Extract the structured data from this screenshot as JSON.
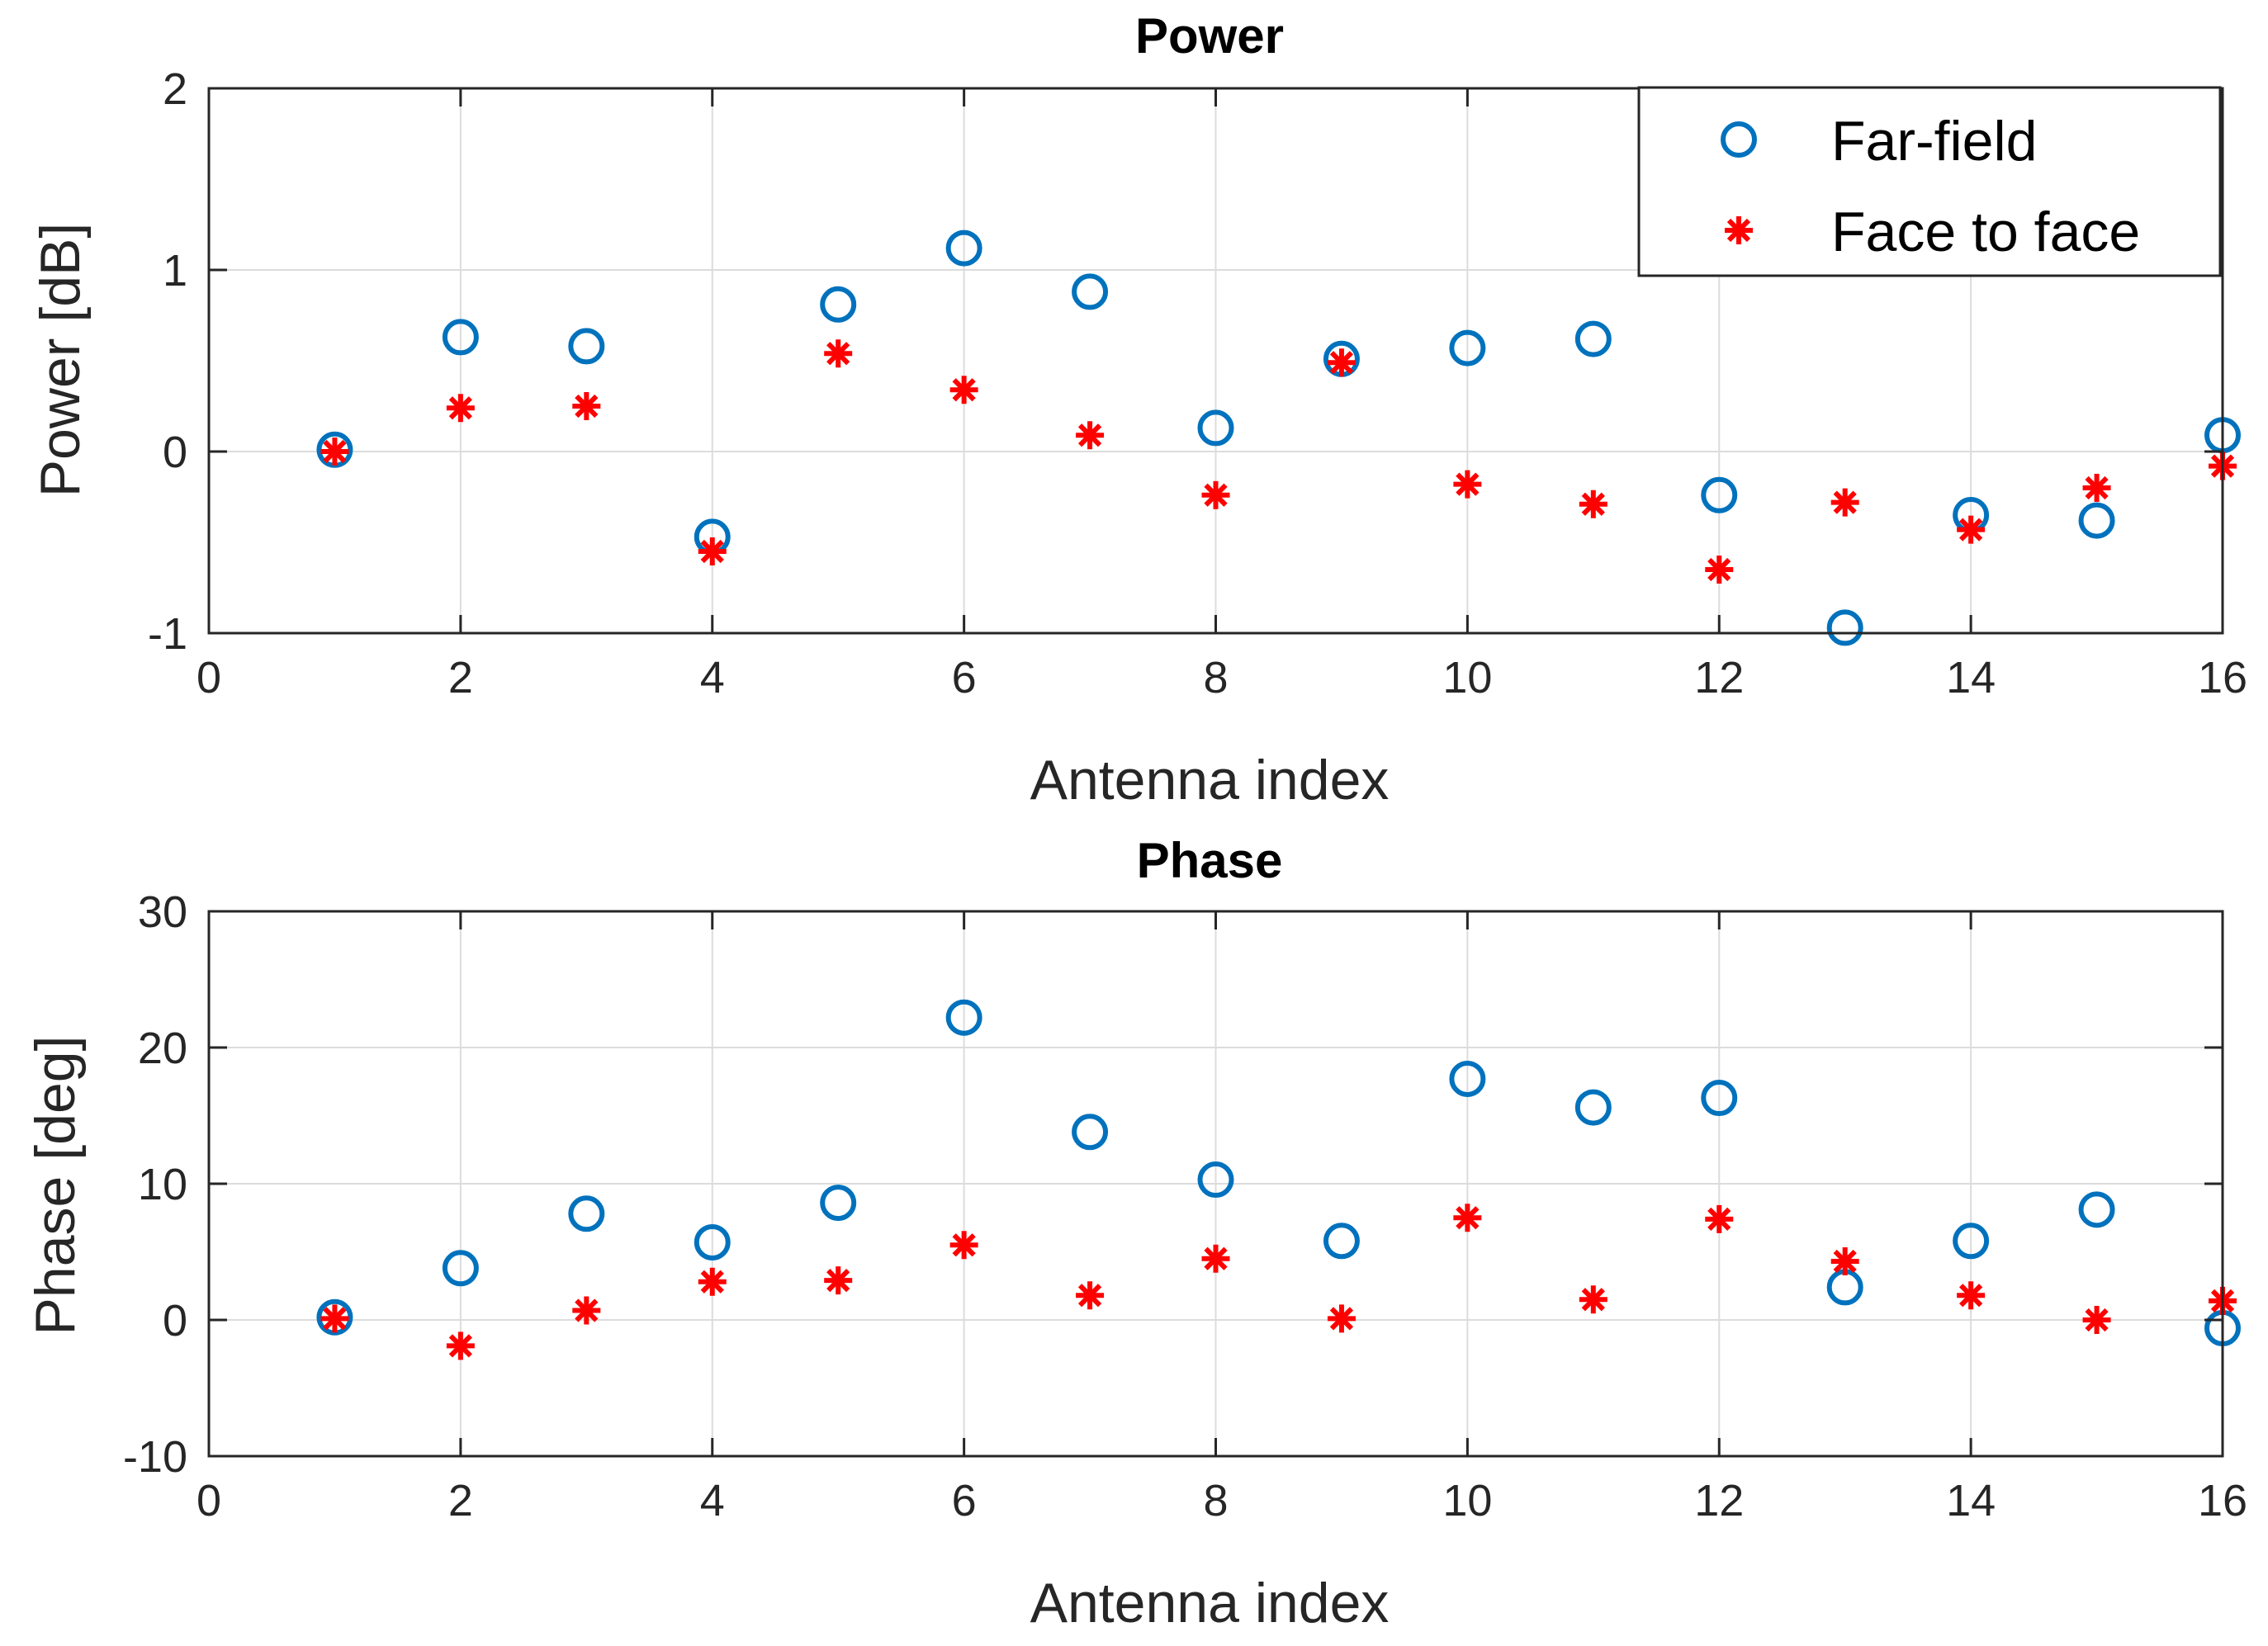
{
  "chart_data": [
    {
      "type": "scatter",
      "title": "Power",
      "xlabel": "Antenna index",
      "ylabel": "Power [dB]",
      "xlim": [
        0,
        16
      ],
      "ylim": [
        -1,
        2
      ],
      "xticks": [
        0,
        2,
        4,
        6,
        8,
        10,
        12,
        14,
        16
      ],
      "yticks": [
        -1,
        0,
        1,
        2
      ],
      "xtick_labels": [
        "0",
        "2",
        "4",
        "6",
        "8",
        "10",
        "12",
        "14",
        "16"
      ],
      "ytick_labels": [
        "-1",
        "0",
        "1",
        "2"
      ],
      "grid": true,
      "legend": {
        "location": "top-right",
        "entries": [
          "Far-field",
          "Face to face"
        ]
      },
      "series": [
        {
          "name": "Far-field",
          "marker": "circle",
          "color": "#0072BD",
          "x": [
            1,
            2,
            3,
            4,
            5,
            6,
            7,
            8,
            9,
            10,
            11,
            12,
            13,
            14,
            15,
            16
          ],
          "y": [
            0.01,
            0.63,
            0.58,
            -0.47,
            0.81,
            1.12,
            0.88,
            0.13,
            0.51,
            0.57,
            0.62,
            -0.24,
            -0.97,
            -0.35,
            -0.38,
            0.09
          ]
        },
        {
          "name": "Face to face",
          "marker": "asterisk",
          "color": "#FF0000",
          "x": [
            1,
            2,
            3,
            4,
            5,
            6,
            7,
            8,
            9,
            10,
            11,
            12,
            13,
            14,
            15,
            16
          ],
          "y": [
            0.0,
            0.24,
            0.25,
            -0.55,
            0.54,
            0.34,
            0.09,
            -0.24,
            0.49,
            -0.18,
            -0.29,
            -0.65,
            -0.28,
            -0.43,
            -0.2,
            -0.08
          ]
        }
      ]
    },
    {
      "type": "scatter",
      "title": "Phase",
      "xlabel": "Antenna index",
      "ylabel": "Phase [deg]",
      "xlim": [
        0,
        16
      ],
      "ylim": [
        -10,
        30
      ],
      "xticks": [
        0,
        2,
        4,
        6,
        8,
        10,
        12,
        14,
        16
      ],
      "yticks": [
        -10,
        0,
        10,
        20,
        30
      ],
      "xtick_labels": [
        "0",
        "2",
        "4",
        "6",
        "8",
        "10",
        "12",
        "14",
        "16"
      ],
      "ytick_labels": [
        "-10",
        "0",
        "10",
        "20",
        "30"
      ],
      "grid": true,
      "series": [
        {
          "name": "Far-field",
          "marker": "circle",
          "color": "#0072BD",
          "x": [
            1,
            2,
            3,
            4,
            5,
            6,
            7,
            8,
            9,
            10,
            11,
            12,
            13,
            14,
            15,
            16
          ],
          "y": [
            0.2,
            3.8,
            7.8,
            5.7,
            8.6,
            22.2,
            13.8,
            10.3,
            5.8,
            17.7,
            15.6,
            16.3,
            2.4,
            5.8,
            8.1,
            -0.6
          ]
        },
        {
          "name": "Face to face",
          "marker": "asterisk",
          "color": "#FF0000",
          "x": [
            1,
            2,
            3,
            4,
            5,
            6,
            7,
            8,
            9,
            10,
            11,
            12,
            13,
            14,
            15,
            16
          ],
          "y": [
            0.1,
            -1.9,
            0.7,
            2.8,
            2.9,
            5.5,
            1.8,
            4.5,
            0.1,
            7.5,
            1.5,
            7.4,
            4.3,
            1.8,
            0.0,
            1.4
          ]
        }
      ]
    }
  ]
}
